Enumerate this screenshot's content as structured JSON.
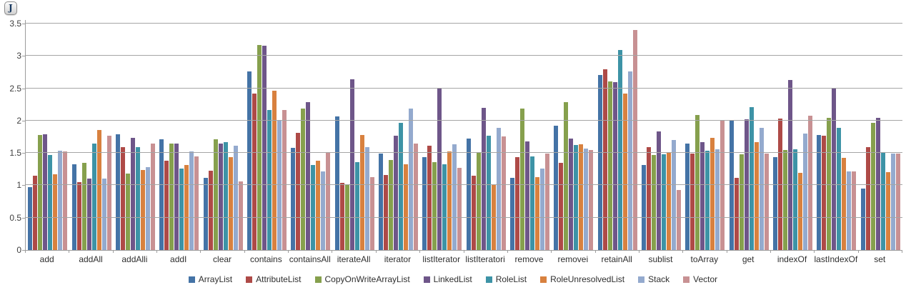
{
  "badge": {
    "label": "J"
  },
  "colors": {
    "axis": "#9c9c9c",
    "gridline": "#a5a5a5",
    "text": "#2f2f2f"
  },
  "chart_data": {
    "type": "bar",
    "title": "",
    "xlabel": "",
    "ylabel": "",
    "ylim": [
      0,
      3.5
    ],
    "ytick_step": 0.5,
    "grid": true,
    "legend_position": "bottom",
    "categories": [
      "add",
      "addAll",
      "addAlli",
      "addI",
      "clear",
      "contains",
      "containsAll",
      "iterateAll",
      "iterator",
      "listIterator",
      "listIteratori",
      "remove",
      "removei",
      "retainAll",
      "sublist",
      "toArray",
      "get",
      "indexOf",
      "lastIndexOf",
      "set"
    ],
    "series": [
      {
        "name": "ArrayList",
        "color": "#4473A6",
        "values": [
          0.97,
          1.32,
          1.79,
          1.71,
          1.12,
          2.76,
          1.58,
          2.07,
          1.49,
          1.44,
          1.72,
          1.12,
          1.92,
          2.71,
          1.31,
          1.64,
          2.0,
          1.44,
          1.78,
          0.95
        ]
      },
      {
        "name": "AttributeList",
        "color": "#AE4A47",
        "values": [
          1.15,
          1.05,
          1.59,
          1.38,
          1.23,
          2.42,
          1.81,
          1.04,
          1.16,
          1.61,
          1.15,
          1.44,
          1.35,
          2.79,
          1.59,
          1.49,
          1.12,
          2.03,
          1.77,
          1.59
        ]
      },
      {
        "name": "CopyOnWriteArrayList",
        "color": "#86A04D",
        "values": [
          1.78,
          1.35,
          1.18,
          1.65,
          1.71,
          3.17,
          2.19,
          1.0,
          1.39,
          1.36,
          1.5,
          2.19,
          2.29,
          2.61,
          1.47,
          2.09,
          1.48,
          1.55,
          2.04,
          1.96
        ]
      },
      {
        "name": "LinkedList",
        "color": "#6E5689",
        "values": [
          1.79,
          1.1,
          1.73,
          1.64,
          1.64,
          3.16,
          2.29,
          2.64,
          1.77,
          2.5,
          2.2,
          1.68,
          1.72,
          2.6,
          1.83,
          1.67,
          2.02,
          2.63,
          2.5,
          2.04
        ]
      },
      {
        "name": "RoleList",
        "color": "#3D93A6",
        "values": [
          1.47,
          1.65,
          1.59,
          1.26,
          1.67,
          2.16,
          1.31,
          1.36,
          1.97,
          1.32,
          1.77,
          1.45,
          1.62,
          3.09,
          1.48,
          1.53,
          2.21,
          1.56,
          1.89,
          1.51
        ]
      },
      {
        "name": "RoleUnresolvedList",
        "color": "#D8813F",
        "values": [
          1.17,
          1.85,
          1.24,
          1.31,
          1.43,
          2.46,
          1.38,
          1.78,
          1.33,
          1.52,
          1.01,
          1.13,
          1.63,
          2.42,
          1.5,
          1.73,
          1.67,
          1.19,
          1.42,
          1.2
        ]
      },
      {
        "name": "Stack",
        "color": "#94AACE",
        "values": [
          1.53,
          1.1,
          1.28,
          1.52,
          1.61,
          2.01,
          1.21,
          1.59,
          2.19,
          1.63,
          1.89,
          1.26,
          1.57,
          2.76,
          1.7,
          1.56,
          1.89,
          1.8,
          1.22,
          1.49
        ]
      },
      {
        "name": "Vector",
        "color": "#C89193",
        "values": [
          1.52,
          1.77,
          1.64,
          1.45,
          1.06,
          2.16,
          1.5,
          1.13,
          1.65,
          1.27,
          1.76,
          1.49,
          1.55,
          3.4,
          0.93,
          2.01,
          1.49,
          2.08,
          1.22,
          1.49
        ]
      }
    ]
  }
}
